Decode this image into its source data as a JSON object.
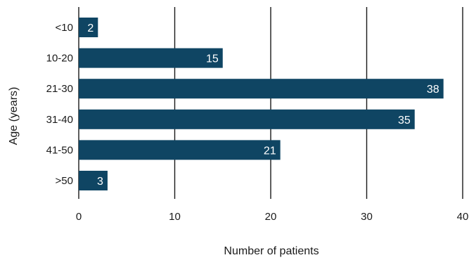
{
  "chart_data": {
    "type": "bar",
    "orientation": "horizontal",
    "categories": [
      "<10",
      "10-20",
      "21-30",
      "31-40",
      "41-50",
      ">50"
    ],
    "values": [
      2,
      15,
      38,
      35,
      21,
      3
    ],
    "xlabel": "Number of patients",
    "ylabel": "Age (years)",
    "xlim": [
      0,
      40
    ],
    "xticks": [
      0,
      10,
      20,
      30,
      40
    ],
    "grid": "vertical",
    "bar_color": "#0f4563",
    "data_label_color": "#ffffff",
    "legend": "none"
  }
}
